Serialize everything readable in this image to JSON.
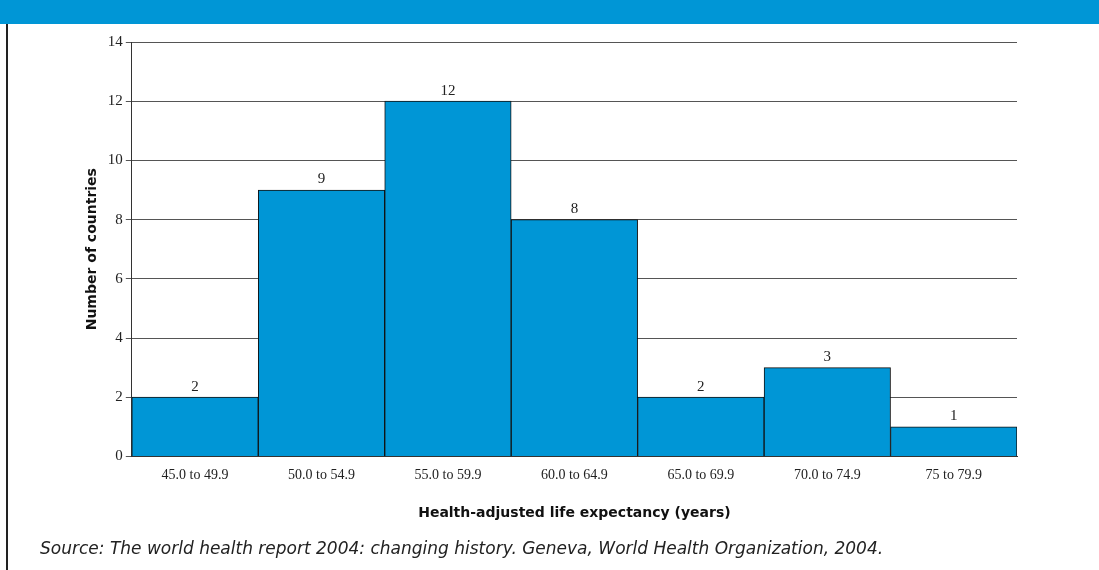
{
  "chart_data": {
    "type": "bar",
    "xlabel": "Health-adjusted life expectancy (years)",
    "ylabel": "Number of countries",
    "categories": [
      "45.0 to 49.9",
      "50.0 to 54.9",
      "55.0 to 59.9",
      "60.0 to 64.9",
      "65.0 to 69.9",
      "70.0 to 74.9",
      "75 to 79.9"
    ],
    "values": [
      2,
      9,
      12,
      8,
      2,
      3,
      1
    ],
    "color": "#0096d6",
    "ylim": [
      0,
      14
    ],
    "yticks": [
      0,
      2,
      4,
      6,
      8,
      10,
      12,
      14
    ],
    "grid": "y",
    "data_labels": true,
    "legend": false,
    "annotations": [
      "Source: The world health report 2004: changing history. Geneva, World Health Organization, 2004."
    ]
  }
}
